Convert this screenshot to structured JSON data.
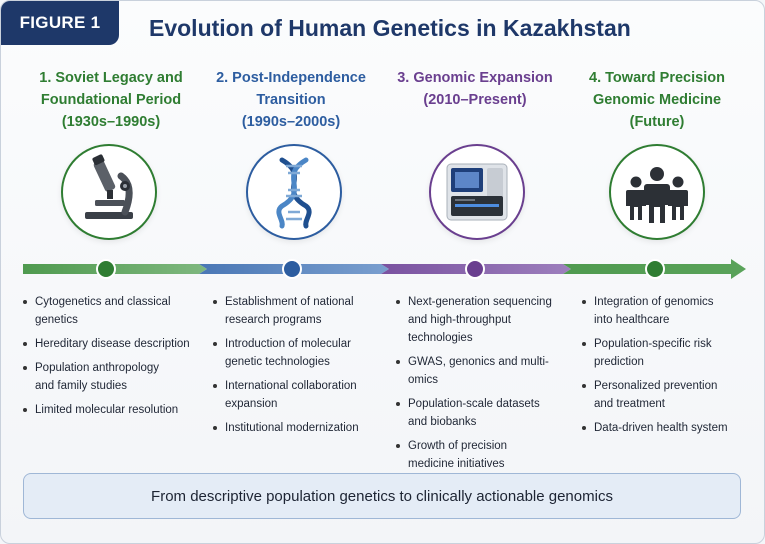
{
  "figure_label": "FIGURE 1",
  "title": "Evolution of Human Genetics in Kazakhstan",
  "stages": [
    {
      "title_lines": [
        "1. Soviet Legacy and",
        "Foundational Period",
        "(1930s–1990s)"
      ],
      "icon": "microscope-icon",
      "color": "#2f7d32",
      "bullets": [
        [
          "Cytogenetics and classical",
          "genetics"
        ],
        [
          "Hereditary disease description"
        ],
        [
          "Population anthropology",
          "and family studies"
        ],
        [
          "Limited molecular resolution"
        ]
      ]
    },
    {
      "title_lines": [
        "2. Post-Independence",
        "Transition",
        "(1990s–2000s)"
      ],
      "icon": "dna-icon",
      "color": "#2d5da0",
      "bullets": [
        [
          "Establishment of national",
          "research programs"
        ],
        [
          "Introduction of molecular",
          "genetic technologies"
        ],
        [
          "International collaboration",
          "expansion"
        ],
        [
          "Institutional modernization"
        ]
      ]
    },
    {
      "title_lines": [
        "3. Genomic Expansion",
        "(2010–Present)"
      ],
      "icon": "sequencer-icon",
      "color": "#6a3f8f",
      "bullets": [
        [
          "Next-generation sequencing",
          "and high-throughput",
          "technologies"
        ],
        [
          "GWAS, genonics and multi-omics"
        ],
        [
          "Population-scale datasets",
          "and biobanks"
        ],
        [
          "Growth of precision",
          "medicine initiatives"
        ]
      ]
    },
    {
      "title_lines": [
        "4. Toward Precision",
        "Genomic Medicine",
        "(Future)"
      ],
      "icon": "people-icon",
      "color": "#2f7d32",
      "bullets": [
        [
          "Integration of genomics",
          "into healthcare"
        ],
        [
          "Population-specific risk",
          "prediction"
        ],
        [
          "Personalized prevention",
          "and treatment"
        ],
        [
          "Data-driven health system"
        ]
      ]
    }
  ],
  "summary": "From descriptive population genetics to clinically actionable genomics"
}
